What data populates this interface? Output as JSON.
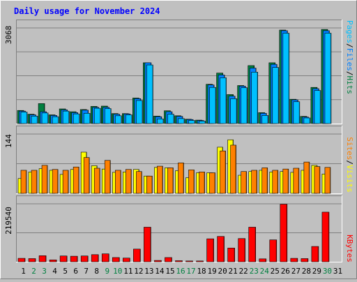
{
  "title": "Daily usage for November 2024",
  "colors": {
    "background": "#c0c0c0",
    "title": "#0000ff",
    "pages": "#00c0ff",
    "files": "#0080ff",
    "hits": "#008040",
    "sites": "#ff8000",
    "visits": "#ffff00",
    "kbytes": "#ff0000",
    "weekend_day_label": "#008040",
    "weekday_label": "#000000",
    "grid": "#808080"
  },
  "legend": {
    "top": {
      "pages": "Pages",
      "sep1": "/",
      "files": "Files",
      "sep2": "/",
      "hits": "Hits"
    },
    "middle": {
      "sites": "Sites",
      "sep1": "/",
      "visits": "Visits"
    },
    "bottom": {
      "kbytes": "KBytes"
    }
  },
  "chart_data": [
    {
      "type": "bar",
      "title": "Daily usage for November 2024",
      "panel": "hits-files-pages",
      "categories": [
        "1",
        "2",
        "3",
        "4",
        "5",
        "6",
        "7",
        "8",
        "9",
        "10",
        "11",
        "12",
        "13",
        "14",
        "15",
        "16",
        "17",
        "18",
        "19",
        "20",
        "21",
        "22",
        "23",
        "24",
        "25",
        "26",
        "27",
        "28",
        "29",
        "30",
        "31"
      ],
      "max_label": "3068",
      "ylim": [
        0,
        3068
      ],
      "series": [
        {
          "name": "Hits",
          "values": [
            420,
            300,
            640,
            280,
            470,
            380,
            450,
            550,
            560,
            320,
            320,
            820,
            1950,
            240,
            410,
            250,
            140,
            110,
            1260,
            1620,
            930,
            1220,
            1860,
            350,
            1950,
            3000,
            780,
            230,
            1160,
            3020,
            0
          ]
        },
        {
          "name": "Files",
          "values": [
            400,
            280,
            380,
            260,
            440,
            350,
            430,
            520,
            520,
            300,
            310,
            800,
            1950,
            220,
            380,
            230,
            130,
            100,
            1240,
            1560,
            880,
            1200,
            1780,
            330,
            1900,
            2980,
            760,
            210,
            1120,
            2980,
            0
          ]
        },
        {
          "name": "Pages",
          "values": [
            370,
            240,
            340,
            220,
            400,
            310,
            330,
            490,
            480,
            250,
            280,
            740,
            1880,
            150,
            300,
            160,
            100,
            80,
            1160,
            1470,
            800,
            1150,
            1650,
            260,
            1800,
            2900,
            700,
            180,
            1060,
            2900,
            0
          ]
        }
      ]
    },
    {
      "type": "bar",
      "panel": "visits-sites",
      "categories": [
        "1",
        "2",
        "3",
        "4",
        "5",
        "6",
        "7",
        "8",
        "9",
        "10",
        "11",
        "12",
        "13",
        "14",
        "15",
        "16",
        "17",
        "18",
        "19",
        "20",
        "21",
        "22",
        "23",
        "24",
        "25",
        "26",
        "27",
        "28",
        "29",
        "30",
        "31"
      ],
      "max_label": "144",
      "ylim": [
        0,
        144
      ],
      "series": [
        {
          "name": "Visits",
          "values": [
            36,
            52,
            60,
            56,
            46,
            58,
            100,
            67,
            59,
            51,
            52,
            58,
            42,
            63,
            62,
            55,
            38,
            50,
            50,
            112,
            130,
            44,
            53,
            56,
            52,
            53,
            51,
            56,
            68,
            47,
            0
          ]
        },
        {
          "name": "Sites",
          "values": [
            56,
            56,
            68,
            58,
            56,
            64,
            87,
            61,
            80,
            56,
            58,
            53,
            42,
            66,
            62,
            74,
            57,
            52,
            50,
            103,
            117,
            53,
            56,
            62,
            56,
            59,
            61,
            76,
            65,
            63,
            0
          ]
        }
      ]
    },
    {
      "type": "bar",
      "panel": "kbytes",
      "categories": [
        "1",
        "2",
        "3",
        "4",
        "5",
        "6",
        "7",
        "8",
        "9",
        "10",
        "11",
        "12",
        "13",
        "14",
        "15",
        "16",
        "17",
        "18",
        "19",
        "20",
        "21",
        "22",
        "23",
        "24",
        "25",
        "26",
        "27",
        "28",
        "29",
        "30",
        "31"
      ],
      "max_label": "219540",
      "ylim": [
        0,
        219540
      ],
      "series": [
        {
          "name": "KBytes",
          "values": [
            13000,
            12000,
            23000,
            7000,
            22000,
            21000,
            22000,
            27000,
            30000,
            16000,
            14000,
            48000,
            131000,
            5000,
            16000,
            4000,
            3000,
            3000,
            87000,
            96000,
            52000,
            88000,
            131000,
            11000,
            83000,
            218000,
            13000,
            12000,
            58000,
            188000,
            0
          ]
        }
      ]
    }
  ]
}
